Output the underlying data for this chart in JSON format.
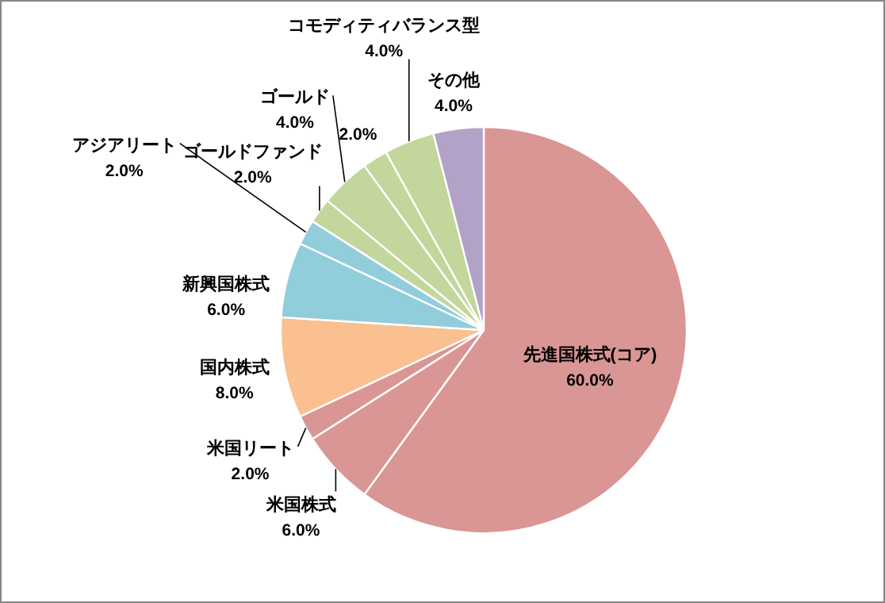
{
  "chart_data": {
    "type": "pie",
    "categories": [
      "先進国株式(コア)",
      "米国株式",
      "米国リート",
      "国内株式",
      "新興国株式",
      "アジアリート",
      "ゴールドファンド",
      "ゴールド",
      null,
      "コモディティバランス型",
      "その他"
    ],
    "values": [
      60,
      6,
      2,
      8,
      6,
      2,
      2,
      4,
      2,
      4,
      4
    ],
    "value_labels": [
      "60.0%",
      "6.0%",
      "2.0%",
      "8.0%",
      "6.0%",
      "2.0%",
      "2.0%",
      "4.0%",
      "2.0%",
      "4.0%",
      "4.0%"
    ],
    "colors": [
      "#d99694",
      "#d99694",
      "#d99694",
      "#fac08f",
      "#92cddc",
      "#92cddc",
      "#c3d69b",
      "#c3d69b",
      "#c3d69b",
      "#c3d69b",
      "#b3a2c7"
    ]
  }
}
